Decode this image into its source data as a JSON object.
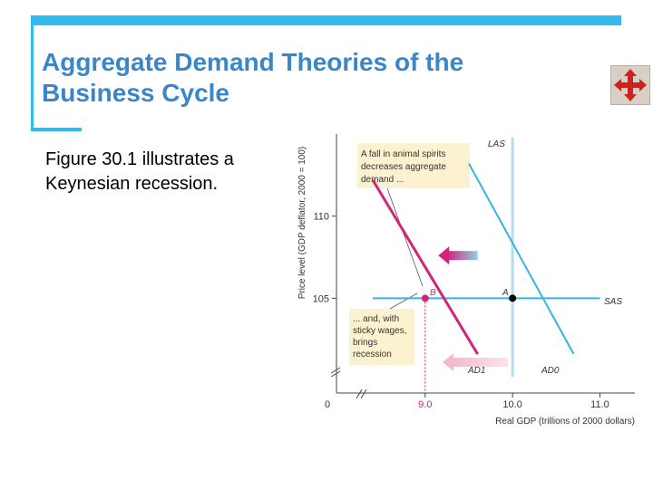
{
  "slide": {
    "title_line1": "Aggregate Demand Theories of the",
    "title_line2": "Business Cycle",
    "body_line1": "Figure 30.1 illustrates a",
    "body_line2": "Keynesian recession.",
    "nav_icon": "four-way-arrows-icon",
    "colors": {
      "title": "#3a86c8",
      "frame": "#33bbee"
    }
  },
  "chart_data": {
    "type": "line",
    "xlabel": "Real GDP (trillions of 2000 dollars)",
    "ylabel": "Price level (GDP deflator, 2000 = 100)",
    "origin_label": "0",
    "xlim": [
      8.4,
      11.4
    ],
    "ylim": [
      100,
      115
    ],
    "x_ticks": [
      {
        "value": 9.0,
        "label": "9.0",
        "color": "#d4237a"
      },
      {
        "value": 10.0,
        "label": "10.0",
        "color": "#333333"
      },
      {
        "value": 11.0,
        "label": "11.0",
        "color": "#333333"
      }
    ],
    "y_ticks": [
      {
        "value": 105,
        "label": "105"
      },
      {
        "value": 110,
        "label": "110"
      }
    ],
    "series": [
      {
        "name": "LAS",
        "color": "#b8dcee",
        "points": [
          [
            10.0,
            114.8
          ],
          [
            10.0,
            100.2
          ]
        ]
      },
      {
        "name": "SAS",
        "color": "#33b5e0",
        "points": [
          [
            8.4,
            105
          ],
          [
            11.0,
            105
          ]
        ]
      },
      {
        "name": "AD0",
        "color": "#33b5e0",
        "points": [
          [
            9.5,
            113.2
          ],
          [
            10.7,
            101.6
          ]
        ]
      },
      {
        "name": "AD1",
        "color": "#d4237a",
        "points": [
          [
            8.4,
            112.2
          ],
          [
            9.6,
            101.6
          ]
        ]
      }
    ],
    "points": [
      {
        "name": "A",
        "x": 10.0,
        "y": 105,
        "color": "#000000"
      },
      {
        "name": "B",
        "x": 9.0,
        "y": 105,
        "color": "#d4237a"
      }
    ],
    "annotations": {
      "box1": [
        "A fall in animal spirits",
        "decreases aggregate",
        "demand ..."
      ],
      "box2": [
        "... and, with",
        "sticky wages,",
        "brings",
        "recession"
      ]
    },
    "arrows": [
      {
        "direction": "left",
        "from_x": 9.6,
        "to_x": 9.15,
        "y": 107.6,
        "colors": [
          "#d4237a",
          "#8ecfe9"
        ]
      },
      {
        "direction": "left",
        "from_x": 9.95,
        "to_x": 9.2,
        "y": 101.1,
        "colors": [
          "#f3b9cf",
          "#fbe3ec"
        ]
      }
    ]
  }
}
